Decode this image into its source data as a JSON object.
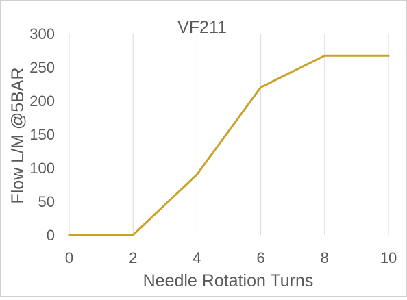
{
  "chart_data": {
    "type": "line",
    "title": "VF211",
    "xlabel": "Needle Rotation Turns",
    "ylabel": "Flow  L/M @5BAR",
    "xlim": [
      0,
      10
    ],
    "ylim": [
      0,
      300
    ],
    "xticks": [
      0,
      2,
      4,
      6,
      8,
      10
    ],
    "yticks": [
      0,
      50,
      100,
      150,
      200,
      250,
      300
    ],
    "grid": "vertical",
    "legend": "none",
    "series": [
      {
        "color": "#c9a227",
        "points": [
          [
            0,
            0
          ],
          [
            2,
            0
          ],
          [
            4,
            90
          ],
          [
            6,
            220
          ],
          [
            8,
            267
          ],
          [
            10,
            267
          ]
        ]
      }
    ]
  },
  "colors": {
    "line": "#c9a227",
    "grid": "#d9d9d9",
    "text": "#595959",
    "border": "#d0d0d0"
  }
}
